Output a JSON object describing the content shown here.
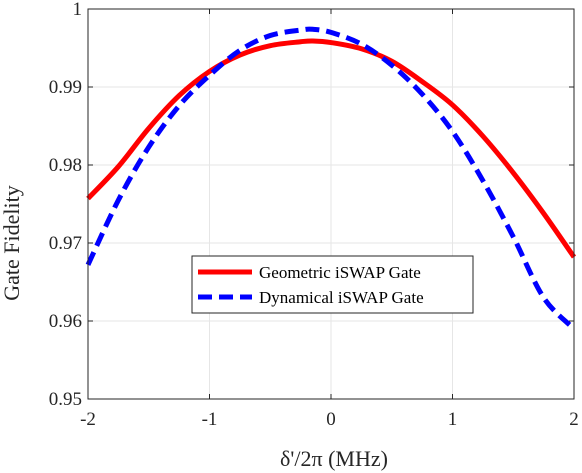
{
  "chart_data": {
    "type": "line",
    "xlabel": "δ'/2π (MHz)",
    "ylabel": "Gate Fidelity",
    "xlim": [
      -2,
      2
    ],
    "ylim": [
      0.95,
      1
    ],
    "xticks": [
      "-2",
      "-1",
      "0",
      "1",
      "2"
    ],
    "yticks": [
      "0.95",
      "0.96",
      "0.97",
      "0.98",
      "0.99",
      "1"
    ],
    "grid": true,
    "legend_position": "lower-center",
    "series": [
      {
        "name": "Geometric iSWAP Gate",
        "color": "#ff0000",
        "style": "solid",
        "x": [
          -2,
          -1.75,
          -1.5,
          -1.25,
          -1,
          -0.75,
          -0.5,
          -0.25,
          -0.15,
          0,
          0.25,
          0.5,
          0.75,
          1,
          1.25,
          1.5,
          1.75,
          2
        ],
        "y": [
          0.9757,
          0.9798,
          0.9847,
          0.9889,
          0.992,
          0.9941,
          0.9953,
          0.9958,
          0.9959,
          0.9957,
          0.9949,
          0.9933,
          0.9907,
          0.9877,
          0.9837,
          0.979,
          0.9738,
          0.9682
        ]
      },
      {
        "name": "Dynamical iSWAP Gate",
        "color": "#0000ff",
        "style": "dashed",
        "x": [
          -2,
          -1.75,
          -1.5,
          -1.25,
          -1,
          -0.75,
          -0.5,
          -0.25,
          -0.15,
          0,
          0.25,
          0.5,
          0.75,
          1,
          1.25,
          1.5,
          1.75,
          2
        ],
        "y": [
          0.9672,
          0.9755,
          0.9823,
          0.9876,
          0.9915,
          0.9947,
          0.9966,
          0.9973,
          0.9974,
          0.997,
          0.9955,
          0.9928,
          0.9891,
          0.9843,
          0.978,
          0.9708,
          0.963,
          0.959
        ]
      }
    ]
  }
}
